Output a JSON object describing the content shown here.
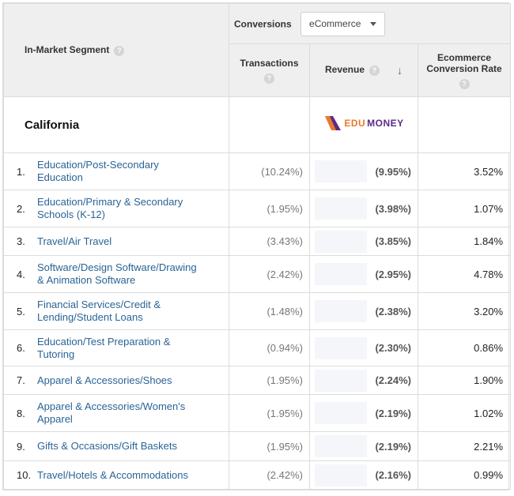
{
  "header": {
    "segment_label": "In-Market Segment",
    "conversions_label": "Conversions",
    "conversions_select": "eCommerce",
    "transactions_label": "Transactions",
    "revenue_label": "Revenue",
    "ecr_label_line1": "Ecommerce",
    "ecr_label_line2": "Conversion Rate",
    "help_glyph": "?",
    "sort_glyph": "↓"
  },
  "summary": {
    "state": "California",
    "logo_edu": "EDU",
    "logo_money": "MONEY"
  },
  "rows": [
    {
      "index": "1.",
      "line1": "Education/Post-Secondary",
      "line2": "Education",
      "transactions": "(10.24%)",
      "revenue": "(9.95%)",
      "conversion_rate": "3.52%"
    },
    {
      "index": "2.",
      "line1": "Education/Primary & Secondary",
      "line2": "Schools (K-12)",
      "transactions": "(1.95%)",
      "revenue": "(3.98%)",
      "conversion_rate": "1.07%"
    },
    {
      "index": "3.",
      "line1": "Travel/Air Travel",
      "line2": "",
      "transactions": "(3.43%)",
      "revenue": "(3.85%)",
      "conversion_rate": "1.84%"
    },
    {
      "index": "4.",
      "line1": "Software/Design Software/Drawing",
      "line2": "& Animation Software",
      "transactions": "(2.42%)",
      "revenue": "(2.95%)",
      "conversion_rate": "4.78%"
    },
    {
      "index": "5.",
      "line1": "Financial Services/Credit &",
      "line2": "Lending/Student Loans",
      "transactions": "(1.48%)",
      "revenue": "(2.38%)",
      "conversion_rate": "3.20%"
    },
    {
      "index": "6.",
      "line1": "Education/Test Preparation &",
      "line2": "Tutoring",
      "transactions": "(0.94%)",
      "revenue": "(2.30%)",
      "conversion_rate": "0.86%"
    },
    {
      "index": "7.",
      "line1": "Apparel & Accessories/Shoes",
      "line2": "",
      "transactions": "(1.95%)",
      "revenue": "(2.24%)",
      "conversion_rate": "1.90%"
    },
    {
      "index": "8.",
      "line1": "Apparel & Accessories/Women's",
      "line2": "Apparel",
      "transactions": "(1.95%)",
      "revenue": "(2.19%)",
      "conversion_rate": "1.02%"
    },
    {
      "index": "9.",
      "line1": "Gifts & Occasions/Gift Baskets",
      "line2": "",
      "transactions": "(1.95%)",
      "revenue": "(2.19%)",
      "conversion_rate": "2.21%"
    },
    {
      "index": "10.",
      "line1": "Travel/Hotels & Accommodations",
      "line2": "",
      "transactions": "(2.42%)",
      "revenue": "(2.16%)",
      "conversion_rate": "0.99%"
    }
  ],
  "colors": {
    "link": "#2a6496",
    "header_bg": "#efefef",
    "border": "#dcdcdc",
    "logo_orange": "#e8792e",
    "logo_purple": "#5b2a86"
  }
}
